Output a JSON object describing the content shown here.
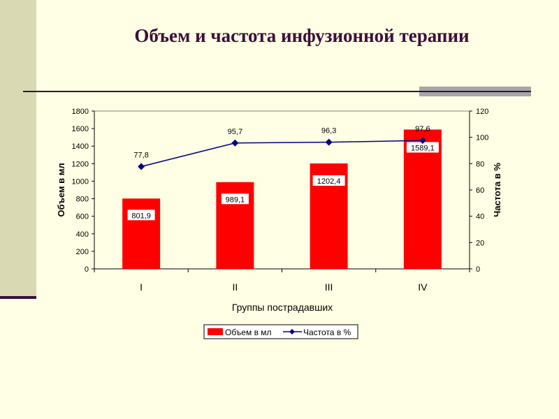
{
  "slide": {
    "title": "Объем и частота инфузионной терапии"
  },
  "chart_data": {
    "type": "bar",
    "categories": [
      "I",
      "II",
      "III",
      "IV"
    ],
    "series": [
      {
        "name": "Объем в мл",
        "type": "bar",
        "axis": "left",
        "values": [
          801.9,
          989.1,
          1202.4,
          1589.1
        ],
        "labels": [
          "801,9",
          "989,1",
          "1202,4",
          "1589,1"
        ],
        "color": "#FF0000"
      },
      {
        "name": "Частота в %",
        "type": "line",
        "axis": "right",
        "values": [
          77.8,
          95.7,
          96.3,
          97.6
        ],
        "labels": [
          "77,8",
          "95,7",
          "96,3",
          "97,6"
        ],
        "color": "#000080"
      }
    ],
    "xlabel": "Группы пострадавших",
    "ylabel": "Объем в мл",
    "y2label": "Частота в %",
    "ylim": [
      0,
      1800
    ],
    "y2lim": [
      0,
      120
    ],
    "yticks": [
      "0",
      "200",
      "400",
      "600",
      "800",
      "1000",
      "1200",
      "1400",
      "1600",
      "1800"
    ],
    "y2ticks": [
      "0",
      "20",
      "40",
      "60",
      "80",
      "100",
      "120"
    ],
    "grid": false,
    "legend": "bottom"
  }
}
